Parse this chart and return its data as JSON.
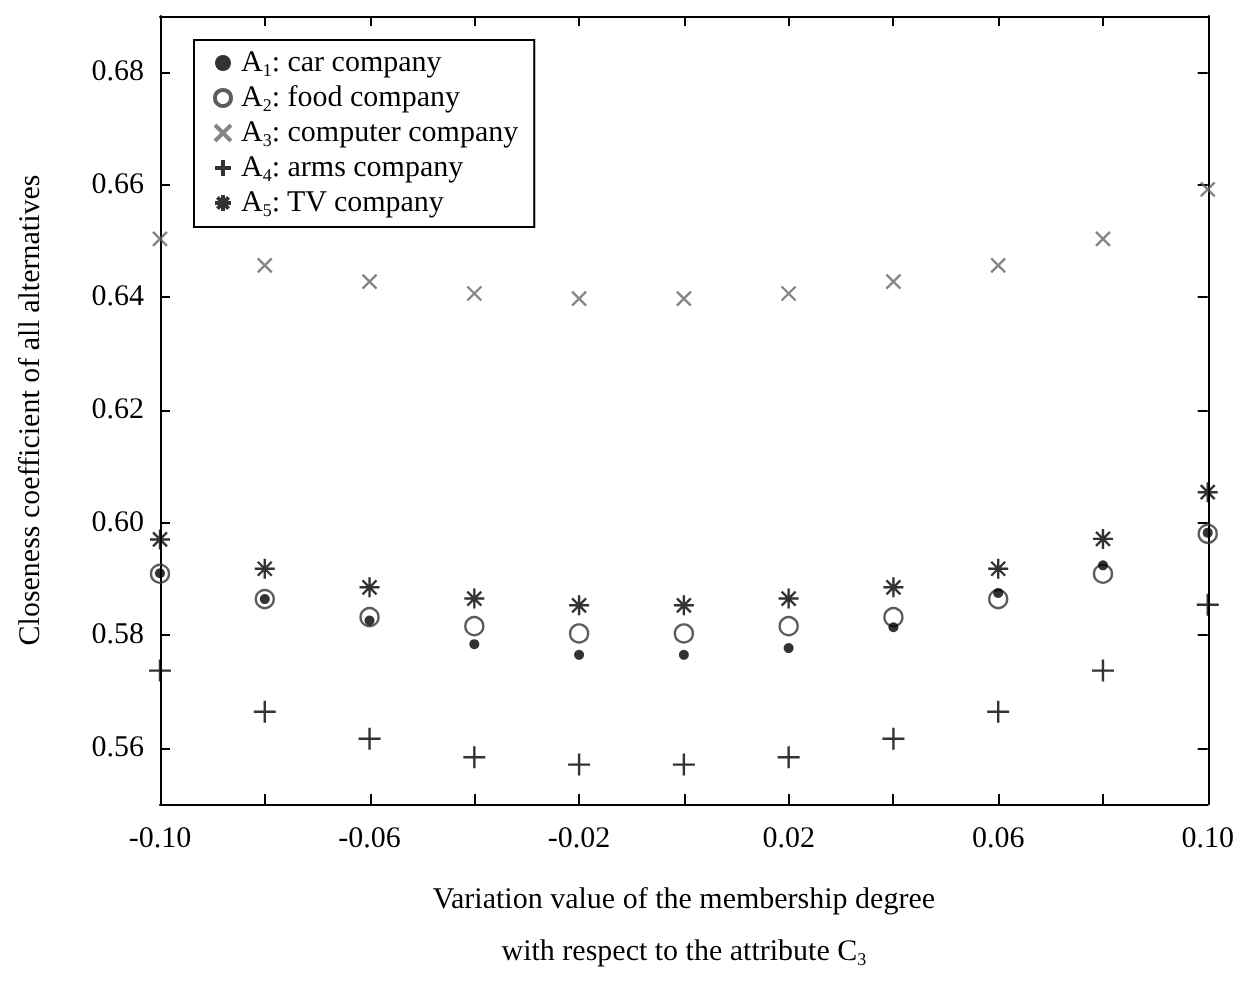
{
  "chart_data": {
    "type": "scatter",
    "xlabel": "Variation value of the membership degree\nwith respect to the attribute C$_{3}$",
    "ylabel": "Closeness coefficient of all alternatives",
    "x": [
      -0.1,
      -0.08,
      -0.06,
      -0.04,
      -0.02,
      0.0,
      0.02,
      0.04,
      0.06,
      0.08,
      0.1
    ],
    "series": [
      {
        "name": "A$_{1}$: car company",
        "color": "#000000",
        "marker": "circle",
        "values": [
          0.591,
          0.5864,
          0.5826,
          0.5784,
          0.5765,
          0.5765,
          0.5777,
          0.5814,
          0.5875,
          0.5924,
          0.5982
        ]
      },
      {
        "name": "A$_{2}$: food company",
        "color": "#333333",
        "marker": "circle",
        "values": [
          0.5909,
          0.5864,
          0.5832,
          0.5816,
          0.5803,
          0.5803,
          0.5816,
          0.5832,
          0.5864,
          0.5909,
          0.598
        ]
      },
      {
        "name": "A$_{3}$: computer company",
        "color": "#666666",
        "marker": "x",
        "values": [
          0.6504,
          0.6457,
          0.6428,
          0.6407,
          0.6398,
          0.6398,
          0.6407,
          0.6428,
          0.6457,
          0.6504,
          0.6592
        ]
      },
      {
        "name": "A$_{4}$: arms company",
        "color": "#000000",
        "marker": "cross",
        "values": [
          0.5737,
          0.5664,
          0.5616,
          0.5583,
          0.557,
          0.557,
          0.5583,
          0.5616,
          0.5664,
          0.5737,
          0.5854
        ]
      },
      {
        "name": "A$_{5}$: TV company",
        "color": "#000000",
        "marker": "cross",
        "values": [
          0.597,
          0.5918,
          0.5885,
          0.5865,
          0.5853,
          0.5853,
          0.5865,
          0.5885,
          0.5918,
          0.5971,
          0.6054
        ]
      }
    ],
    "xlim": [
      -0.1,
      0.1
    ],
    "xticks": [
      {
        "value": -0.1,
        "label": "-0.10"
      },
      {
        "value": -0.08,
        "label": null
      },
      {
        "value": -0.06,
        "label": "-0.06"
      },
      {
        "value": -0.04,
        "label": null
      },
      {
        "value": -0.02,
        "label": "-0.02"
      },
      {
        "value": 0.0,
        "label": null
      },
      {
        "value": 0.02,
        "label": "0.02"
      },
      {
        "value": 0.04,
        "label": null
      },
      {
        "value": 0.06,
        "label": "0.06"
      },
      {
        "value": 0.08,
        "label": null
      },
      {
        "value": 0.1,
        "label": "0.10"
      }
    ],
    "ylim": [
      0.55,
      0.69
    ],
    "yticks": [
      0.56,
      0.58,
      {
        "value": 0.6,
        "label": "0.60"
      },
      0.62,
      0.64,
      0.66,
      0.68
    ],
    "grid": false,
    "legend": "top left"
  }
}
